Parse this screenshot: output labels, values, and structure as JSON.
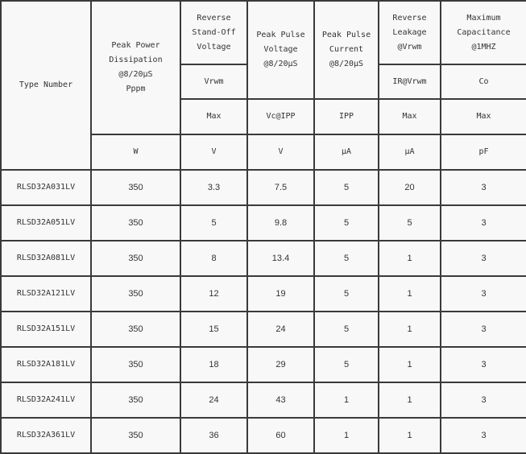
{
  "header": {
    "type_number": "Type Number",
    "peak_power": [
      "Peak Power",
      "Dissipation",
      "@8/20μS",
      "Pppm"
    ],
    "reverse_standoff": [
      "Reverse",
      "Stand-Off",
      "Voltage"
    ],
    "peak_pulse_voltage": [
      "Peak Pulse",
      "Voltage",
      "@8/20μS"
    ],
    "peak_pulse_current": [
      "Peak Pulse",
      "Current",
      "@8/20μS"
    ],
    "reverse_leakage": [
      "Reverse",
      "Leakage",
      "@Vrwm"
    ],
    "max_capacitance": [
      "Maximum",
      "Capacitance",
      "@1MHZ"
    ],
    "symbols": {
      "vrwm": "Vrwm",
      "ir": "IR@Vrwm",
      "co": "Co"
    },
    "conditions": {
      "standoff": "Max",
      "voltage": "Vc@IPP",
      "current": "IPP",
      "leakage": "Max",
      "capacitance": "Max"
    },
    "units": {
      "power": "W",
      "standoff": "V",
      "voltage": "V",
      "current": "μA",
      "leakage": "μA",
      "capacitance": "pF"
    }
  },
  "rows": [
    [
      "RLSD32A031LV",
      "350",
      "3.3",
      "7.5",
      "5",
      "20",
      "3"
    ],
    [
      "RLSD32A051LV",
      "350",
      "5",
      "9.8",
      "5",
      "5",
      "3"
    ],
    [
      "RLSD32A081LV",
      "350",
      "8",
      "13.4",
      "5",
      "1",
      "3"
    ],
    [
      "RLSD32A121LV",
      "350",
      "12",
      "19",
      "5",
      "1",
      "3"
    ],
    [
      "RLSD32A151LV",
      "350",
      "15",
      "24",
      "5",
      "1",
      "3"
    ],
    [
      "RLSD32A181LV",
      "350",
      "18",
      "29",
      "5",
      "1",
      "3"
    ],
    [
      "RLSD32A241LV",
      "350",
      "24",
      "43",
      "1",
      "1",
      "3"
    ],
    [
      "RLSD32A361LV",
      "350",
      "36",
      "60",
      "1",
      "1",
      "3"
    ]
  ]
}
